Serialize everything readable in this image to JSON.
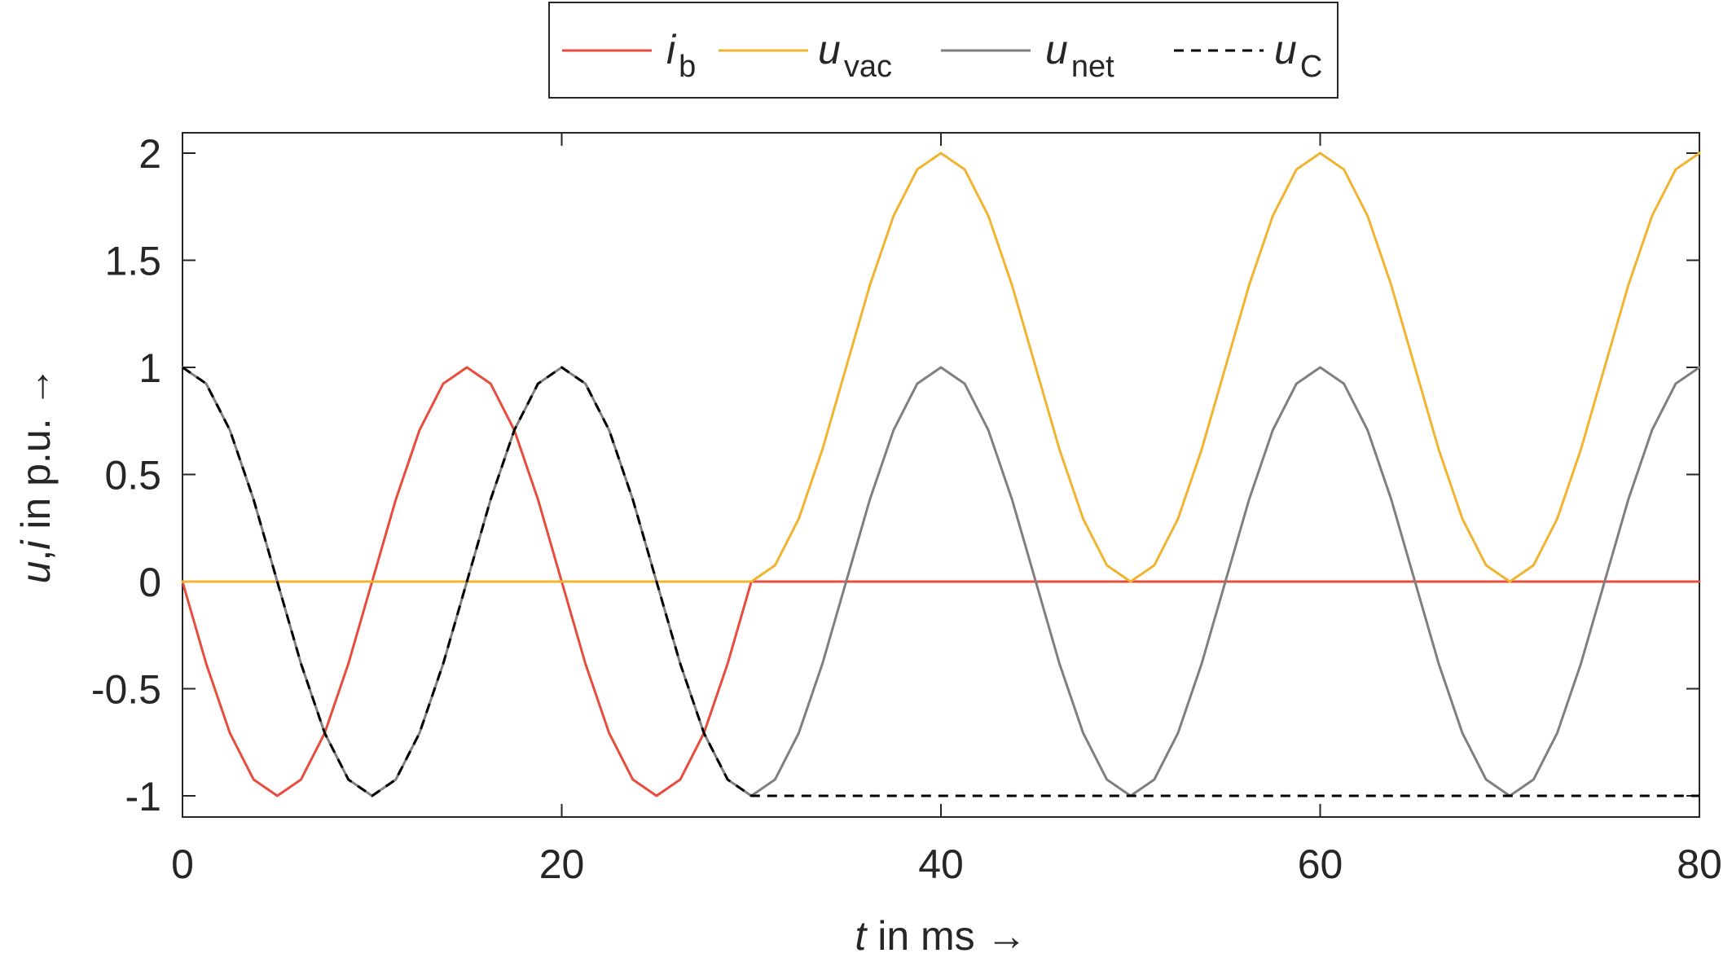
{
  "chart_data": {
    "type": "line",
    "xlabel": {
      "var": "t",
      "text": " in ms →"
    },
    "ylabel": {
      "var1": "u",
      "sep": ",",
      "var2": "i",
      "text": " in p.u. →"
    },
    "xlim": [
      0,
      80
    ],
    "ylim": [
      -1.1,
      2.1
    ],
    "xticks": [
      0,
      20,
      40,
      60,
      80
    ],
    "xtick_labels": [
      "0",
      "20",
      "40",
      "60",
      "80"
    ],
    "yticks": [
      -1,
      -0.5,
      0,
      0.5,
      1,
      1.5,
      2
    ],
    "ytick_labels": [
      "-1",
      "-0.5",
      "0",
      "0.5",
      "1",
      "1.5",
      "2"
    ],
    "grid": false,
    "legend_position": "top-center-outside",
    "series": [
      {
        "key": "ib",
        "name_main": "i",
        "name_sub": "b",
        "color": "#e74c3c",
        "style": "solid",
        "points": [
          [
            0,
            0
          ],
          [
            1.25,
            -0.383
          ],
          [
            2.5,
            -0.707
          ],
          [
            3.75,
            -0.924
          ],
          [
            5,
            -1
          ],
          [
            6.25,
            -0.924
          ],
          [
            7.5,
            -0.707
          ],
          [
            8.75,
            -0.383
          ],
          [
            10,
            0
          ],
          [
            11.25,
            0.383
          ],
          [
            12.5,
            0.707
          ],
          [
            13.75,
            0.924
          ],
          [
            15,
            1
          ],
          [
            16.25,
            0.924
          ],
          [
            17.5,
            0.707
          ],
          [
            18.75,
            0.383
          ],
          [
            20,
            0
          ],
          [
            21.25,
            -0.383
          ],
          [
            22.5,
            -0.707
          ],
          [
            23.75,
            -0.924
          ],
          [
            25,
            -1
          ],
          [
            26.25,
            -0.924
          ],
          [
            27.5,
            -0.707
          ],
          [
            28.75,
            -0.383
          ],
          [
            30,
            0
          ],
          [
            80,
            0
          ]
        ]
      },
      {
        "key": "uvac",
        "name_main": "u",
        "name_sub": "vac",
        "color": "#f2b430",
        "style": "solid",
        "points": [
          [
            0,
            0
          ],
          [
            30,
            0
          ],
          [
            31.25,
            0.076
          ],
          [
            32.5,
            0.293
          ],
          [
            33.75,
            0.617
          ],
          [
            35,
            1
          ],
          [
            36.25,
            1.383
          ],
          [
            37.5,
            1.707
          ],
          [
            38.75,
            1.924
          ],
          [
            40,
            2
          ],
          [
            41.25,
            1.924
          ],
          [
            42.5,
            1.707
          ],
          [
            43.75,
            1.383
          ],
          [
            45,
            1
          ],
          [
            46.25,
            0.617
          ],
          [
            47.5,
            0.293
          ],
          [
            48.75,
            0.076
          ],
          [
            50,
            0
          ],
          [
            51.25,
            0.076
          ],
          [
            52.5,
            0.293
          ],
          [
            53.75,
            0.617
          ],
          [
            55,
            1
          ],
          [
            56.25,
            1.383
          ],
          [
            57.5,
            1.707
          ],
          [
            58.75,
            1.924
          ],
          [
            60,
            2
          ],
          [
            61.25,
            1.924
          ],
          [
            62.5,
            1.707
          ],
          [
            63.75,
            1.383
          ],
          [
            65,
            1
          ],
          [
            66.25,
            0.617
          ],
          [
            67.5,
            0.293
          ],
          [
            68.75,
            0.076
          ],
          [
            70,
            0
          ],
          [
            71.25,
            0.076
          ],
          [
            72.5,
            0.293
          ],
          [
            73.75,
            0.617
          ],
          [
            75,
            1
          ],
          [
            76.25,
            1.383
          ],
          [
            77.5,
            1.707
          ],
          [
            78.75,
            1.924
          ],
          [
            80,
            2
          ]
        ]
      },
      {
        "key": "unet",
        "name_main": "u",
        "name_sub": "net",
        "color": "#7f7f7f",
        "style": "solid",
        "points": [
          [
            0,
            1
          ],
          [
            1.25,
            0.924
          ],
          [
            2.5,
            0.707
          ],
          [
            3.75,
            0.383
          ],
          [
            5,
            0
          ],
          [
            6.25,
            -0.383
          ],
          [
            7.5,
            -0.707
          ],
          [
            8.75,
            -0.924
          ],
          [
            10,
            -1
          ],
          [
            11.25,
            -0.924
          ],
          [
            12.5,
            -0.707
          ],
          [
            13.75,
            -0.383
          ],
          [
            15,
            0
          ],
          [
            16.25,
            0.383
          ],
          [
            17.5,
            0.707
          ],
          [
            18.75,
            0.924
          ],
          [
            20,
            1
          ],
          [
            21.25,
            0.924
          ],
          [
            22.5,
            0.707
          ],
          [
            23.75,
            0.383
          ],
          [
            25,
            0
          ],
          [
            26.25,
            -0.383
          ],
          [
            27.5,
            -0.707
          ],
          [
            28.75,
            -0.924
          ],
          [
            30,
            -1
          ],
          [
            31.25,
            -0.924
          ],
          [
            32.5,
            -0.707
          ],
          [
            33.75,
            -0.383
          ],
          [
            35,
            0
          ],
          [
            36.25,
            0.383
          ],
          [
            37.5,
            0.707
          ],
          [
            38.75,
            0.924
          ],
          [
            40,
            1
          ],
          [
            41.25,
            0.924
          ],
          [
            42.5,
            0.707
          ],
          [
            43.75,
            0.383
          ],
          [
            45,
            0
          ],
          [
            46.25,
            -0.383
          ],
          [
            47.5,
            -0.707
          ],
          [
            48.75,
            -0.924
          ],
          [
            50,
            -1
          ],
          [
            51.25,
            -0.924
          ],
          [
            52.5,
            -0.707
          ],
          [
            53.75,
            -0.383
          ],
          [
            55,
            0
          ],
          [
            56.25,
            0.383
          ],
          [
            57.5,
            0.707
          ],
          [
            58.75,
            0.924
          ],
          [
            60,
            1
          ],
          [
            61.25,
            0.924
          ],
          [
            62.5,
            0.707
          ],
          [
            63.75,
            0.383
          ],
          [
            65,
            0
          ],
          [
            66.25,
            -0.383
          ],
          [
            67.5,
            -0.707
          ],
          [
            68.75,
            -0.924
          ],
          [
            70,
            -1
          ],
          [
            71.25,
            -0.924
          ],
          [
            72.5,
            -0.707
          ],
          [
            73.75,
            -0.383
          ],
          [
            75,
            0
          ],
          [
            76.25,
            0.383
          ],
          [
            77.5,
            0.707
          ],
          [
            78.75,
            0.924
          ],
          [
            80,
            1
          ]
        ]
      },
      {
        "key": "uc",
        "name_main": "u",
        "name_sub": "C",
        "color": "#000000",
        "style": "dashed",
        "points": [
          [
            0,
            1
          ],
          [
            1.25,
            0.924
          ],
          [
            2.5,
            0.707
          ],
          [
            3.75,
            0.383
          ],
          [
            5,
            0
          ],
          [
            6.25,
            -0.383
          ],
          [
            7.5,
            -0.707
          ],
          [
            8.75,
            -0.924
          ],
          [
            10,
            -1
          ],
          [
            11.25,
            -0.924
          ],
          [
            12.5,
            -0.707
          ],
          [
            13.75,
            -0.383
          ],
          [
            15,
            0
          ],
          [
            16.25,
            0.383
          ],
          [
            17.5,
            0.707
          ],
          [
            18.75,
            0.924
          ],
          [
            20,
            1
          ],
          [
            21.25,
            0.924
          ],
          [
            22.5,
            0.707
          ],
          [
            23.75,
            0.383
          ],
          [
            25,
            0
          ],
          [
            26.25,
            -0.383
          ],
          [
            27.5,
            -0.707
          ],
          [
            28.75,
            -0.924
          ],
          [
            30,
            -1
          ],
          [
            80,
            -1
          ]
        ]
      }
    ]
  }
}
